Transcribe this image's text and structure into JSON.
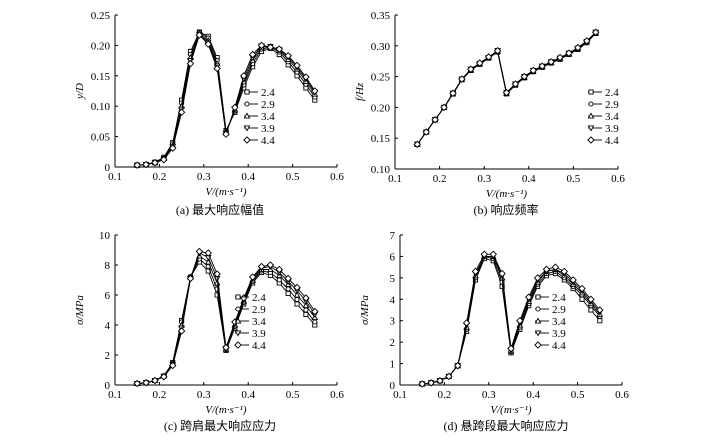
{
  "chart_data": [
    {
      "type": "line",
      "title": "(a) 最大响应幅值",
      "xlabel": "V/(m·s⁻¹)",
      "ylabel": "y/D",
      "xlim": [
        0.1,
        0.6
      ],
      "ylim": [
        0,
        0.25
      ],
      "xticks": [
        "0.1",
        "0.2",
        "0.3",
        "0.4",
        "0.5",
        "0.6"
      ],
      "yticks": [
        "0",
        "0.05",
        "0.10",
        "0.15",
        "0.20",
        "0.25"
      ],
      "legend": "right",
      "x": [
        0.15,
        0.17,
        0.19,
        0.21,
        0.23,
        0.25,
        0.27,
        0.29,
        0.31,
        0.33,
        0.35,
        0.37,
        0.39,
        0.41,
        0.43,
        0.45,
        0.47,
        0.49,
        0.51,
        0.53,
        0.55
      ],
      "series": [
        {
          "name": "2.4",
          "marker": "square",
          "values": [
            0.003,
            0.004,
            0.008,
            0.016,
            0.04,
            0.11,
            0.19,
            0.222,
            0.215,
            0.18,
            0.06,
            0.09,
            0.13,
            0.165,
            0.19,
            0.195,
            0.185,
            0.168,
            0.15,
            0.13,
            0.11
          ]
        },
        {
          "name": "2.9",
          "marker": "circle",
          "values": [
            0.003,
            0.004,
            0.008,
            0.015,
            0.038,
            0.105,
            0.185,
            0.221,
            0.212,
            0.175,
            0.058,
            0.092,
            0.135,
            0.17,
            0.194,
            0.197,
            0.189,
            0.173,
            0.156,
            0.136,
            0.115
          ]
        },
        {
          "name": "3.4",
          "marker": "triangle-up",
          "values": [
            0.003,
            0.004,
            0.007,
            0.014,
            0.035,
            0.1,
            0.18,
            0.219,
            0.208,
            0.17,
            0.056,
            0.094,
            0.14,
            0.175,
            0.197,
            0.198,
            0.192,
            0.177,
            0.161,
            0.141,
            0.12
          ]
        },
        {
          "name": "3.9",
          "marker": "triangle-down",
          "values": [
            0.003,
            0.004,
            0.007,
            0.013,
            0.033,
            0.095,
            0.175,
            0.218,
            0.205,
            0.166,
            0.055,
            0.096,
            0.145,
            0.18,
            0.199,
            0.198,
            0.193,
            0.181,
            0.164,
            0.145,
            0.123
          ]
        },
        {
          "name": "4.4",
          "marker": "diamond",
          "values": [
            0.003,
            0.004,
            0.007,
            0.012,
            0.031,
            0.09,
            0.17,
            0.217,
            0.202,
            0.162,
            0.054,
            0.098,
            0.15,
            0.185,
            0.2,
            0.197,
            0.194,
            0.183,
            0.167,
            0.148,
            0.125
          ]
        }
      ]
    },
    {
      "type": "line",
      "title": "(b) 响应频率",
      "xlabel": "V/(m·s⁻¹)",
      "ylabel": "f/Hz",
      "xlim": [
        0.1,
        0.6
      ],
      "ylim": [
        0.1,
        0.35
      ],
      "xticks": [
        "0.1",
        "0.2",
        "0.3",
        "0.4",
        "0.5",
        "0.6"
      ],
      "yticks": [
        "0.10",
        "0.15",
        "0.20",
        "0.25",
        "0.30",
        "0.35"
      ],
      "legend": "right",
      "x": [
        0.15,
        0.17,
        0.19,
        0.21,
        0.23,
        0.25,
        0.27,
        0.29,
        0.31,
        0.33,
        0.35,
        0.37,
        0.39,
        0.41,
        0.43,
        0.45,
        0.47,
        0.49,
        0.51,
        0.53,
        0.55
      ],
      "series": [
        {
          "name": "2.4",
          "marker": "square",
          "values": [
            0.14,
            0.16,
            0.18,
            0.2,
            0.222,
            0.245,
            0.26,
            0.27,
            0.28,
            0.29,
            0.222,
            0.236,
            0.248,
            0.258,
            0.265,
            0.272,
            0.278,
            0.286,
            0.294,
            0.305,
            0.32
          ]
        },
        {
          "name": "2.9",
          "marker": "circle",
          "values": [
            0.14,
            0.16,
            0.18,
            0.2,
            0.222,
            0.245,
            0.261,
            0.27,
            0.28,
            0.291,
            0.223,
            0.237,
            0.249,
            0.259,
            0.266,
            0.273,
            0.279,
            0.287,
            0.295,
            0.306,
            0.321
          ]
        },
        {
          "name": "3.4",
          "marker": "triangle-up",
          "values": [
            0.14,
            0.16,
            0.18,
            0.2,
            0.222,
            0.246,
            0.261,
            0.271,
            0.281,
            0.291,
            0.223,
            0.237,
            0.249,
            0.259,
            0.266,
            0.273,
            0.28,
            0.287,
            0.296,
            0.307,
            0.321
          ]
        },
        {
          "name": "3.9",
          "marker": "triangle-down",
          "values": [
            0.14,
            0.16,
            0.18,
            0.2,
            0.223,
            0.246,
            0.262,
            0.271,
            0.281,
            0.292,
            0.224,
            0.238,
            0.25,
            0.26,
            0.267,
            0.274,
            0.28,
            0.288,
            0.296,
            0.307,
            0.322
          ]
        },
        {
          "name": "4.4",
          "marker": "diamond",
          "values": [
            0.14,
            0.16,
            0.18,
            0.2,
            0.223,
            0.246,
            0.262,
            0.272,
            0.282,
            0.292,
            0.224,
            0.238,
            0.25,
            0.26,
            0.267,
            0.274,
            0.281,
            0.288,
            0.297,
            0.308,
            0.322
          ]
        }
      ]
    },
    {
      "type": "line",
      "title": "(c) 跨肩最大响应应力",
      "xlabel": "V/(m·s⁻¹)",
      "ylabel": "σ/MPa",
      "xlim": [
        0.1,
        0.6
      ],
      "ylim": [
        0,
        10
      ],
      "xticks": [
        "0.1",
        "0.2",
        "0.3",
        "0.4",
        "0.5",
        "0.6"
      ],
      "yticks": [
        "0",
        "2",
        "4",
        "6",
        "8",
        "10"
      ],
      "legend": "right",
      "x": [
        0.15,
        0.17,
        0.19,
        0.21,
        0.23,
        0.25,
        0.27,
        0.29,
        0.31,
        0.33,
        0.35,
        0.37,
        0.39,
        0.41,
        0.43,
        0.45,
        0.47,
        0.49,
        0.51,
        0.53,
        0.55
      ],
      "series": [
        {
          "name": "2.4",
          "marker": "square",
          "values": [
            0.1,
            0.15,
            0.3,
            0.6,
            1.5,
            4.3,
            7.2,
            8.2,
            7.6,
            6.0,
            2.3,
            3.8,
            5.4,
            6.8,
            7.5,
            7.3,
            6.8,
            6.1,
            5.4,
            4.7,
            4.0
          ]
        },
        {
          "name": "2.9",
          "marker": "circle",
          "values": [
            0.1,
            0.15,
            0.3,
            0.6,
            1.45,
            4.2,
            7.2,
            8.4,
            7.9,
            6.4,
            2.35,
            3.9,
            5.5,
            6.9,
            7.6,
            7.5,
            7.0,
            6.4,
            5.7,
            5.0,
            4.2
          ]
        },
        {
          "name": "3.4",
          "marker": "triangle-up",
          "values": [
            0.1,
            0.15,
            0.3,
            0.6,
            1.4,
            4.0,
            7.2,
            8.6,
            8.2,
            6.8,
            2.4,
            4.0,
            5.6,
            7.0,
            7.7,
            7.7,
            7.3,
            6.7,
            6.0,
            5.3,
            4.5
          ]
        },
        {
          "name": "3.9",
          "marker": "triangle-down",
          "values": [
            0.1,
            0.15,
            0.3,
            0.55,
            1.35,
            3.8,
            7.1,
            8.8,
            8.5,
            7.1,
            2.45,
            4.1,
            5.7,
            7.1,
            7.8,
            7.9,
            7.5,
            6.9,
            6.3,
            5.6,
            4.7
          ]
        },
        {
          "name": "4.4",
          "marker": "diamond",
          "values": [
            0.1,
            0.15,
            0.3,
            0.55,
            1.3,
            3.6,
            7.1,
            8.9,
            8.8,
            7.4,
            2.5,
            4.2,
            5.8,
            7.2,
            7.9,
            8.0,
            7.7,
            7.1,
            6.5,
            5.8,
            4.9
          ]
        }
      ]
    },
    {
      "type": "line",
      "title": "(d) 悬跨段最大响应应力",
      "xlabel": "V/(m·s⁻¹)",
      "ylabel": "σ/MPa",
      "xlim": [
        0.1,
        0.6
      ],
      "ylim": [
        0,
        7
      ],
      "xticks": [
        "0.1",
        "0.2",
        "0.3",
        "0.4",
        "0.5",
        "0.6"
      ],
      "yticks": [
        "0",
        "1",
        "2",
        "3",
        "4",
        "5",
        "6",
        "7"
      ],
      "legend": "right",
      "x": [
        0.15,
        0.17,
        0.19,
        0.21,
        0.23,
        0.25,
        0.27,
        0.29,
        0.31,
        0.33,
        0.35,
        0.37,
        0.39,
        0.41,
        0.43,
        0.45,
        0.47,
        0.49,
        0.51,
        0.53,
        0.55
      ],
      "series": [
        {
          "name": "2.4",
          "marker": "square",
          "values": [
            0.05,
            0.1,
            0.2,
            0.4,
            0.9,
            2.5,
            4.9,
            5.9,
            5.8,
            4.6,
            1.5,
            2.6,
            3.7,
            4.6,
            5.1,
            5.2,
            4.9,
            4.5,
            4.0,
            3.5,
            3.0
          ]
        },
        {
          "name": "2.9",
          "marker": "circle",
          "values": [
            0.05,
            0.1,
            0.2,
            0.4,
            0.9,
            2.6,
            5.0,
            6.0,
            5.9,
            4.8,
            1.55,
            2.7,
            3.8,
            4.7,
            5.2,
            5.3,
            5.0,
            4.6,
            4.2,
            3.7,
            3.2
          ]
        },
        {
          "name": "3.4",
          "marker": "triangle-up",
          "values": [
            0.05,
            0.1,
            0.2,
            0.4,
            0.9,
            2.7,
            5.1,
            6.0,
            6.0,
            5.0,
            1.6,
            2.8,
            3.9,
            4.8,
            5.3,
            5.4,
            5.1,
            4.7,
            4.3,
            3.8,
            3.3
          ]
        },
        {
          "name": "3.9",
          "marker": "triangle-down",
          "values": [
            0.05,
            0.1,
            0.2,
            0.4,
            0.9,
            2.8,
            5.2,
            6.0,
            6.0,
            5.1,
            1.65,
            2.9,
            4.0,
            4.9,
            5.3,
            5.4,
            5.2,
            4.8,
            4.4,
            3.9,
            3.4
          ]
        },
        {
          "name": "4.4",
          "marker": "diamond",
          "values": [
            0.05,
            0.1,
            0.2,
            0.4,
            0.9,
            2.9,
            5.3,
            6.1,
            6.1,
            5.2,
            1.7,
            3.0,
            4.1,
            5.0,
            5.4,
            5.5,
            5.3,
            4.9,
            4.5,
            4.0,
            3.5
          ]
        }
      ]
    }
  ]
}
